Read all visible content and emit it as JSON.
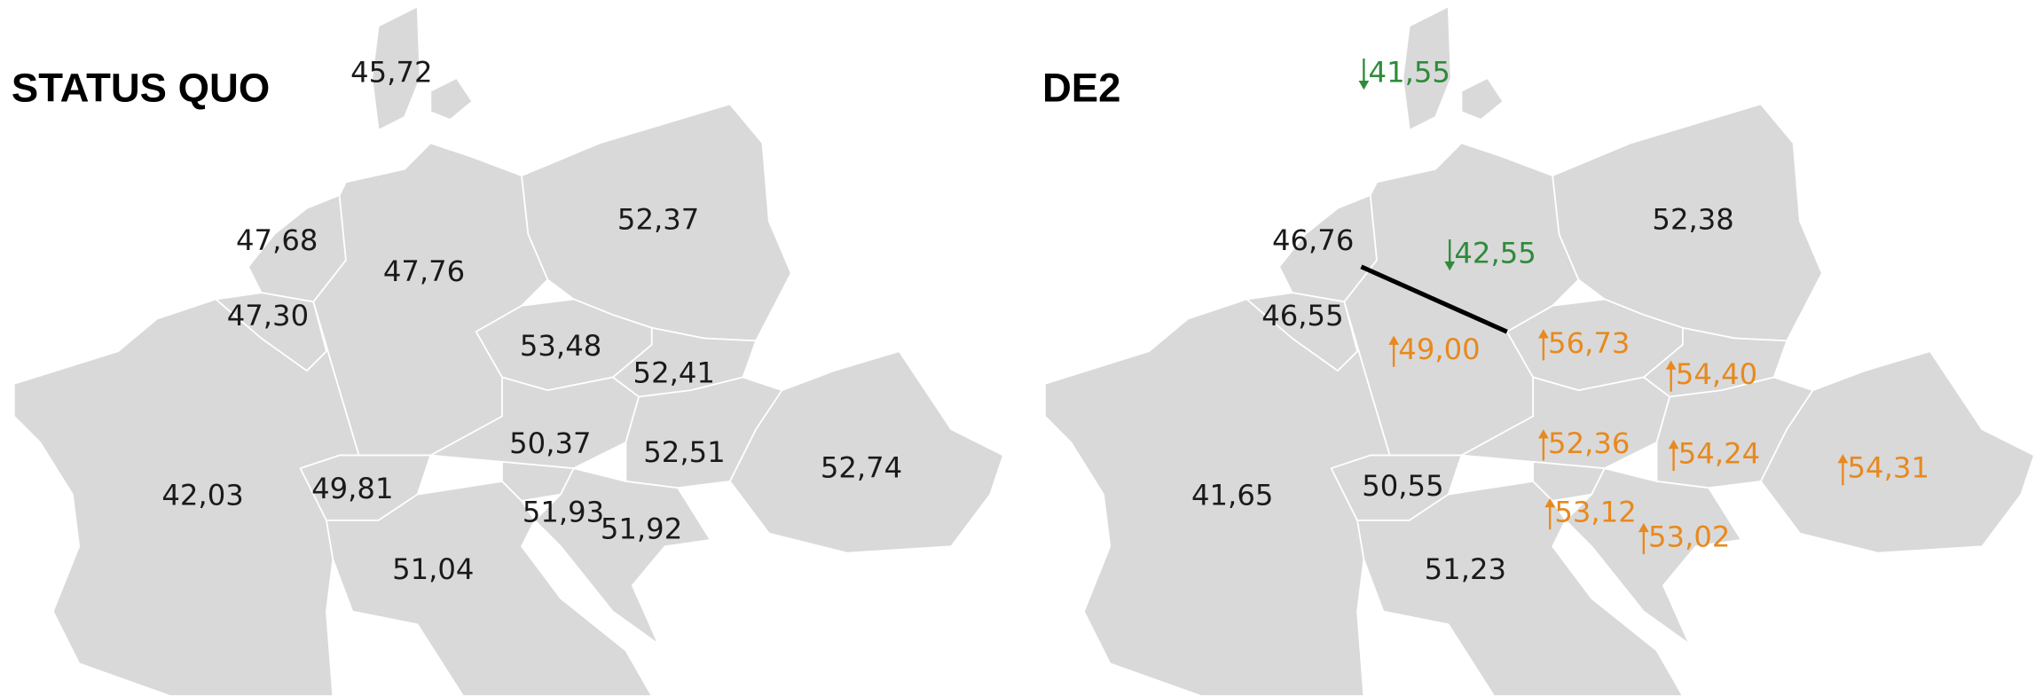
{
  "panels": [
    {
      "title": "STATUS QUO",
      "labels": [
        "45,72",
        "47,68",
        "47,76",
        "52,37",
        "47,30",
        "53,48",
        "52,41",
        "50,37",
        "52,51",
        "52,74",
        "42,03",
        "49,81",
        "51,93",
        "51,92",
        "51,04"
      ]
    },
    {
      "title": "DE2",
      "labels": [
        "41,55",
        "52,38",
        "46,76",
        "42,55",
        "46,55",
        "49,00",
        "56,73",
        "54,40",
        "52,36",
        "54,24",
        "54,31",
        "41,65",
        "50,55",
        "53,12",
        "53,02",
        "51,23"
      ]
    }
  ]
}
